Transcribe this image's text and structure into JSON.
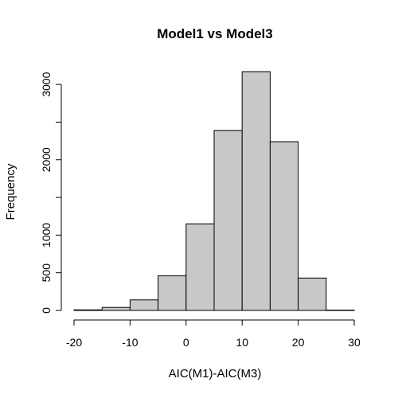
{
  "colors": {
    "bar_fill": "#c8c8c8",
    "bar_stroke": "#000000",
    "background": "#ffffff"
  },
  "chart_data": {
    "type": "bar",
    "subtype": "histogram",
    "title": "Model1 vs Model3",
    "xlabel": "AIC(M1)-AIC(M3)",
    "ylabel": "Frequency",
    "bin_edges": [
      -20,
      -15,
      -10,
      -5,
      0,
      5,
      10,
      15,
      20,
      25,
      30
    ],
    "values": [
      8,
      40,
      140,
      460,
      1150,
      2390,
      3170,
      2240,
      430,
      5
    ],
    "xlim": [
      -20,
      30
    ],
    "ylim": [
      0,
      3170
    ],
    "x_ticks": [
      -20,
      -10,
      0,
      10,
      20,
      30
    ],
    "x_tick_labels": [
      "-20",
      "-10",
      "0",
      "10",
      "20",
      "30"
    ],
    "y_ticks": [
      0,
      500,
      1000,
      1500,
      2000,
      2500,
      3000
    ],
    "y_tick_labels": [
      "0",
      "500",
      "1000",
      "",
      "2000",
      "",
      "3000"
    ],
    "grid": false,
    "legend": "none"
  }
}
